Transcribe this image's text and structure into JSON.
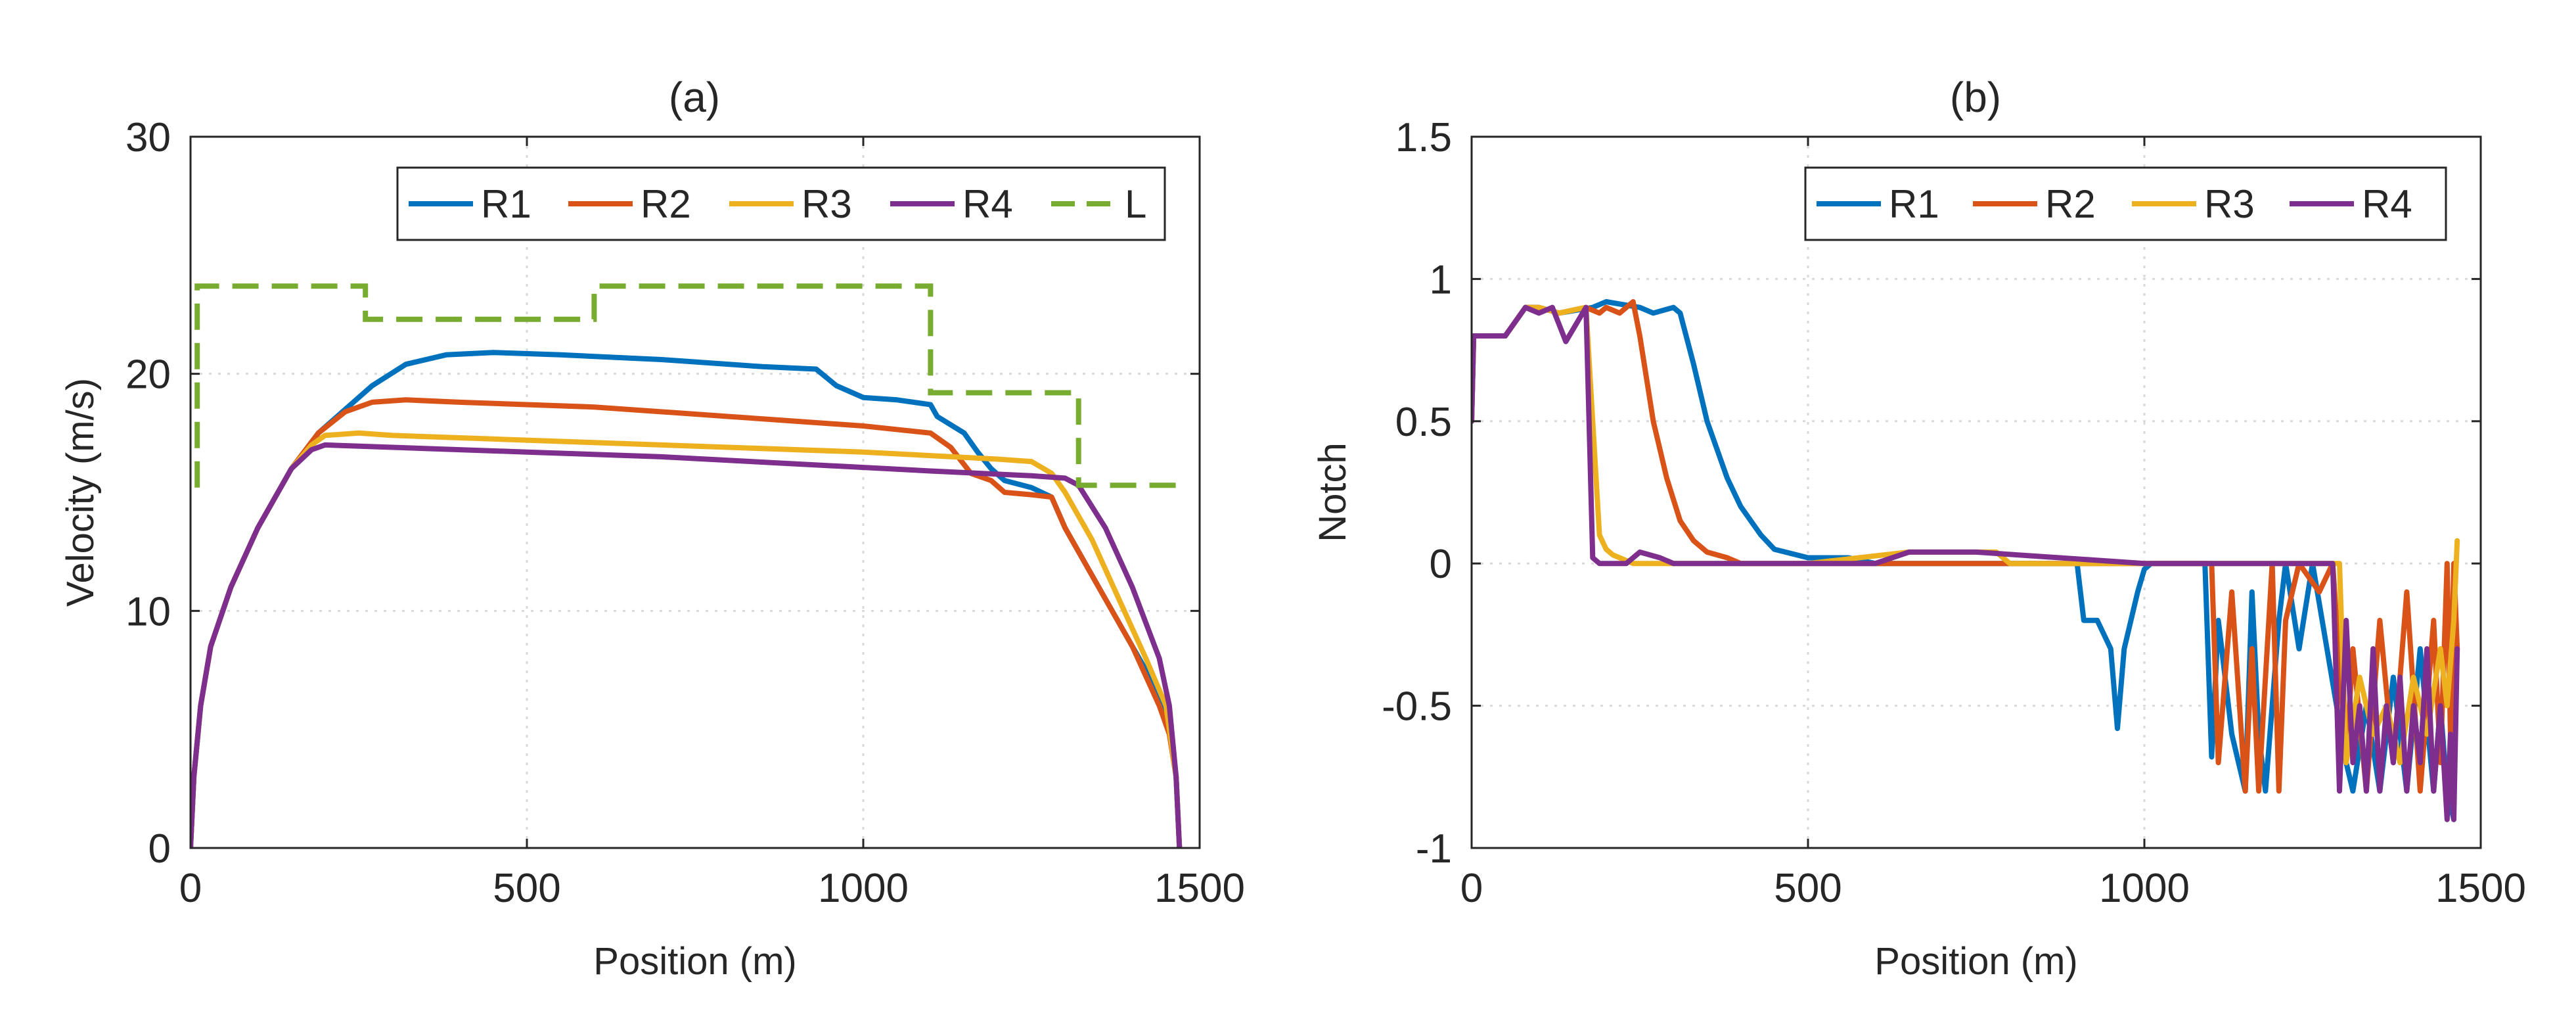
{
  "colors": {
    "R1": "#0072BD",
    "R2": "#D95319",
    "R3": "#EDB120",
    "R4": "#7E2F8E",
    "L": "#77AC30",
    "axis": "#262626",
    "grid": "#d9d9d9"
  },
  "chart_data": [
    {
      "id": "a",
      "type": "line",
      "title": "(a)",
      "xlabel": "Position (m)",
      "ylabel": "Velocity (m/s)",
      "xlim": [
        0,
        1500
      ],
      "ylim": [
        0,
        30
      ],
      "xticks": [
        0,
        500,
        1000,
        1500
      ],
      "yticks": [
        0,
        10,
        20,
        30
      ],
      "grid": true,
      "legend": "top-right, single row",
      "series": [
        {
          "name": "R1",
          "style": "solid",
          "x": [
            0,
            5,
            15,
            30,
            60,
            100,
            150,
            190,
            230,
            270,
            320,
            380,
            450,
            550,
            700,
            850,
            930,
            960,
            1000,
            1050,
            1100,
            1110,
            1150,
            1170,
            1190,
            1210,
            1250,
            1280,
            1300,
            1330,
            1360,
            1400,
            1440,
            1455,
            1465,
            1470
          ],
          "y": [
            0,
            3,
            6,
            8.5,
            11,
            13.5,
            16,
            17.5,
            18.5,
            19.5,
            20.4,
            20.8,
            20.9,
            20.8,
            20.6,
            20.3,
            20.2,
            19.5,
            19,
            18.9,
            18.7,
            18.2,
            17.5,
            16.7,
            16,
            15.5,
            15.2,
            14.8,
            13.5,
            12,
            10.5,
            8.5,
            6.5,
            5,
            3,
            0
          ]
        },
        {
          "name": "R2",
          "style": "solid",
          "x": [
            0,
            5,
            15,
            30,
            60,
            100,
            150,
            190,
            230,
            270,
            320,
            400,
            600,
            800,
            1000,
            1100,
            1130,
            1160,
            1190,
            1210,
            1250,
            1280,
            1300,
            1330,
            1360,
            1400,
            1440,
            1455,
            1465,
            1470
          ],
          "y": [
            0,
            3,
            6,
            8.5,
            11,
            13.5,
            16,
            17.5,
            18.4,
            18.8,
            18.9,
            18.8,
            18.6,
            18.2,
            17.8,
            17.5,
            16.9,
            15.8,
            15.5,
            15,
            14.9,
            14.8,
            13.5,
            12,
            10.5,
            8.5,
            6,
            4.8,
            3,
            0
          ]
        },
        {
          "name": "R3",
          "style": "solid",
          "x": [
            0,
            5,
            15,
            30,
            60,
            100,
            150,
            180,
            200,
            250,
            300,
            400,
            600,
            800,
            1000,
            1200,
            1250,
            1280,
            1300,
            1340,
            1380,
            1420,
            1450,
            1465,
            1470
          ],
          "y": [
            0,
            3,
            6,
            8.5,
            11,
            13.5,
            16,
            17,
            17.4,
            17.5,
            17.4,
            17.3,
            17.1,
            16.9,
            16.7,
            16.4,
            16.3,
            15.8,
            15,
            13,
            10.5,
            8,
            6,
            3,
            0
          ]
        },
        {
          "name": "R4",
          "style": "solid",
          "x": [
            0,
            5,
            15,
            30,
            60,
            100,
            150,
            180,
            200,
            300,
            500,
            700,
            900,
            1100,
            1250,
            1300,
            1320,
            1360,
            1400,
            1440,
            1455,
            1465,
            1470
          ],
          "y": [
            0,
            3,
            6,
            8.5,
            11,
            13.5,
            16,
            16.8,
            17,
            16.9,
            16.7,
            16.5,
            16.2,
            15.9,
            15.7,
            15.6,
            15.3,
            13.5,
            11,
            8,
            6,
            3,
            0
          ]
        },
        {
          "name": "L",
          "style": "dashed",
          "x": [
            10,
            10,
            260,
            260,
            600,
            600,
            1100,
            1100,
            1320,
            1320,
            1470
          ],
          "y": [
            15.2,
            23.7,
            23.7,
            22.3,
            22.3,
            23.7,
            23.7,
            19.2,
            19.2,
            15.3,
            15.3
          ]
        }
      ]
    },
    {
      "id": "b",
      "type": "line",
      "title": "(b)",
      "xlabel": "Position (m)",
      "ylabel": "Notch",
      "xlim": [
        0,
        1500
      ],
      "ylim": [
        -1,
        1.5
      ],
      "xticks": [
        0,
        500,
        1000,
        1500
      ],
      "yticks": [
        -1,
        -0.5,
        0,
        0.5,
        1,
        1.5
      ],
      "ytick_labels": [
        "-1",
        "-0.5",
        "0",
        "0.5",
        "1",
        "1.5"
      ],
      "grid": true,
      "legend": "top-right, single row",
      "series": [
        {
          "name": "R1",
          "style": "solid",
          "x": [
            0,
            3,
            5,
            50,
            80,
            100,
            130,
            180,
            200,
            250,
            270,
            300,
            310,
            330,
            350,
            380,
            400,
            430,
            450,
            500,
            520,
            560,
            600,
            900,
            910,
            930,
            950,
            960,
            970,
            990,
            1000,
            1010,
            1050,
            1090,
            1100,
            1110,
            1130,
            1150,
            1160,
            1170,
            1180,
            1200,
            1210,
            1230,
            1250,
            1300,
            1310,
            1330,
            1350,
            1370,
            1390,
            1410,
            1430,
            1440,
            1450,
            1460
          ],
          "y": [
            0.5,
            0.8,
            0.8,
            0.8,
            0.9,
            0.9,
            0.88,
            0.9,
            0.92,
            0.9,
            0.88,
            0.9,
            0.88,
            0.7,
            0.5,
            0.3,
            0.2,
            0.1,
            0.05,
            0.02,
            0.02,
            0.02,
            0,
            0,
            -0.2,
            -0.2,
            -0.3,
            -0.58,
            -0.3,
            -0.1,
            -0.02,
            0,
            0,
            0,
            -0.68,
            -0.2,
            -0.6,
            -0.8,
            -0.1,
            -0.6,
            -0.8,
            -0.2,
            0,
            -0.3,
            0,
            -0.7,
            -0.8,
            -0.5,
            -0.8,
            -0.4,
            -0.8,
            -0.3,
            -0.8,
            -0.5,
            -0.8,
            -0.9
          ]
        },
        {
          "name": "R2",
          "style": "solid",
          "x": [
            0,
            3,
            5,
            50,
            80,
            100,
            130,
            170,
            190,
            200,
            220,
            240,
            250,
            270,
            290,
            310,
            330,
            350,
            380,
            400,
            500,
            600,
            700,
            750,
            1000,
            1100,
            1110,
            1130,
            1150,
            1160,
            1170,
            1190,
            1200,
            1210,
            1230,
            1260,
            1280,
            1300,
            1310,
            1330,
            1350,
            1370,
            1390,
            1410,
            1430,
            1440,
            1450,
            1455,
            1460,
            1465
          ],
          "y": [
            0.5,
            0.8,
            0.8,
            0.8,
            0.9,
            0.9,
            0.88,
            0.9,
            0.88,
            0.9,
            0.88,
            0.92,
            0.8,
            0.5,
            0.3,
            0.15,
            0.08,
            0.04,
            0.02,
            0,
            0,
            0,
            0,
            0,
            0,
            0,
            -0.7,
            -0.1,
            -0.8,
            -0.3,
            -0.8,
            0,
            -0.8,
            -0.2,
            0,
            -0.1,
            0,
            -0.7,
            -0.3,
            -0.8,
            -0.2,
            -0.7,
            -0.1,
            -0.8,
            -0.2,
            -0.7,
            0,
            -0.6,
            0,
            -0.3
          ]
        },
        {
          "name": "R3",
          "style": "solid",
          "x": [
            0,
            3,
            5,
            50,
            80,
            100,
            130,
            170,
            180,
            190,
            200,
            210,
            240,
            300,
            400,
            500,
            650,
            700,
            780,
            800,
            1000,
            1290,
            1300,
            1320,
            1340,
            1360,
            1380,
            1400,
            1420,
            1440,
            1450,
            1460,
            1465
          ],
          "y": [
            0.5,
            0.8,
            0.8,
            0.8,
            0.9,
            0.9,
            0.88,
            0.9,
            0.5,
            0.1,
            0.05,
            0.03,
            0,
            0,
            0,
            0,
            0.04,
            0.04,
            0.04,
            0,
            0,
            0,
            -0.7,
            -0.4,
            -0.6,
            -0.5,
            -0.7,
            -0.4,
            -0.6,
            -0.3,
            -0.5,
            -0.2,
            0.08
          ]
        },
        {
          "name": "R4",
          "style": "solid",
          "x": [
            0,
            3,
            5,
            50,
            80,
            100,
            120,
            140,
            170,
            180,
            190,
            230,
            250,
            280,
            300,
            350,
            400,
            600,
            650,
            700,
            750,
            1000,
            1280,
            1290,
            1300,
            1310,
            1320,
            1330,
            1340,
            1350,
            1360,
            1370,
            1380,
            1390,
            1400,
            1410,
            1420,
            1430,
            1440,
            1450,
            1455,
            1460,
            1465
          ],
          "y": [
            0.5,
            0.8,
            0.8,
            0.8,
            0.9,
            0.88,
            0.9,
            0.78,
            0.9,
            0.02,
            0,
            0,
            0.04,
            0.02,
            0,
            0,
            0,
            0,
            0.04,
            0.04,
            0.04,
            0,
            0,
            -0.8,
            -0.2,
            -0.7,
            -0.5,
            -0.8,
            -0.3,
            -0.8,
            -0.5,
            -0.7,
            -0.4,
            -0.8,
            -0.5,
            -0.7,
            -0.3,
            -0.8,
            -0.5,
            -0.9,
            -0.6,
            -0.9,
            -0.3
          ]
        }
      ]
    }
  ]
}
